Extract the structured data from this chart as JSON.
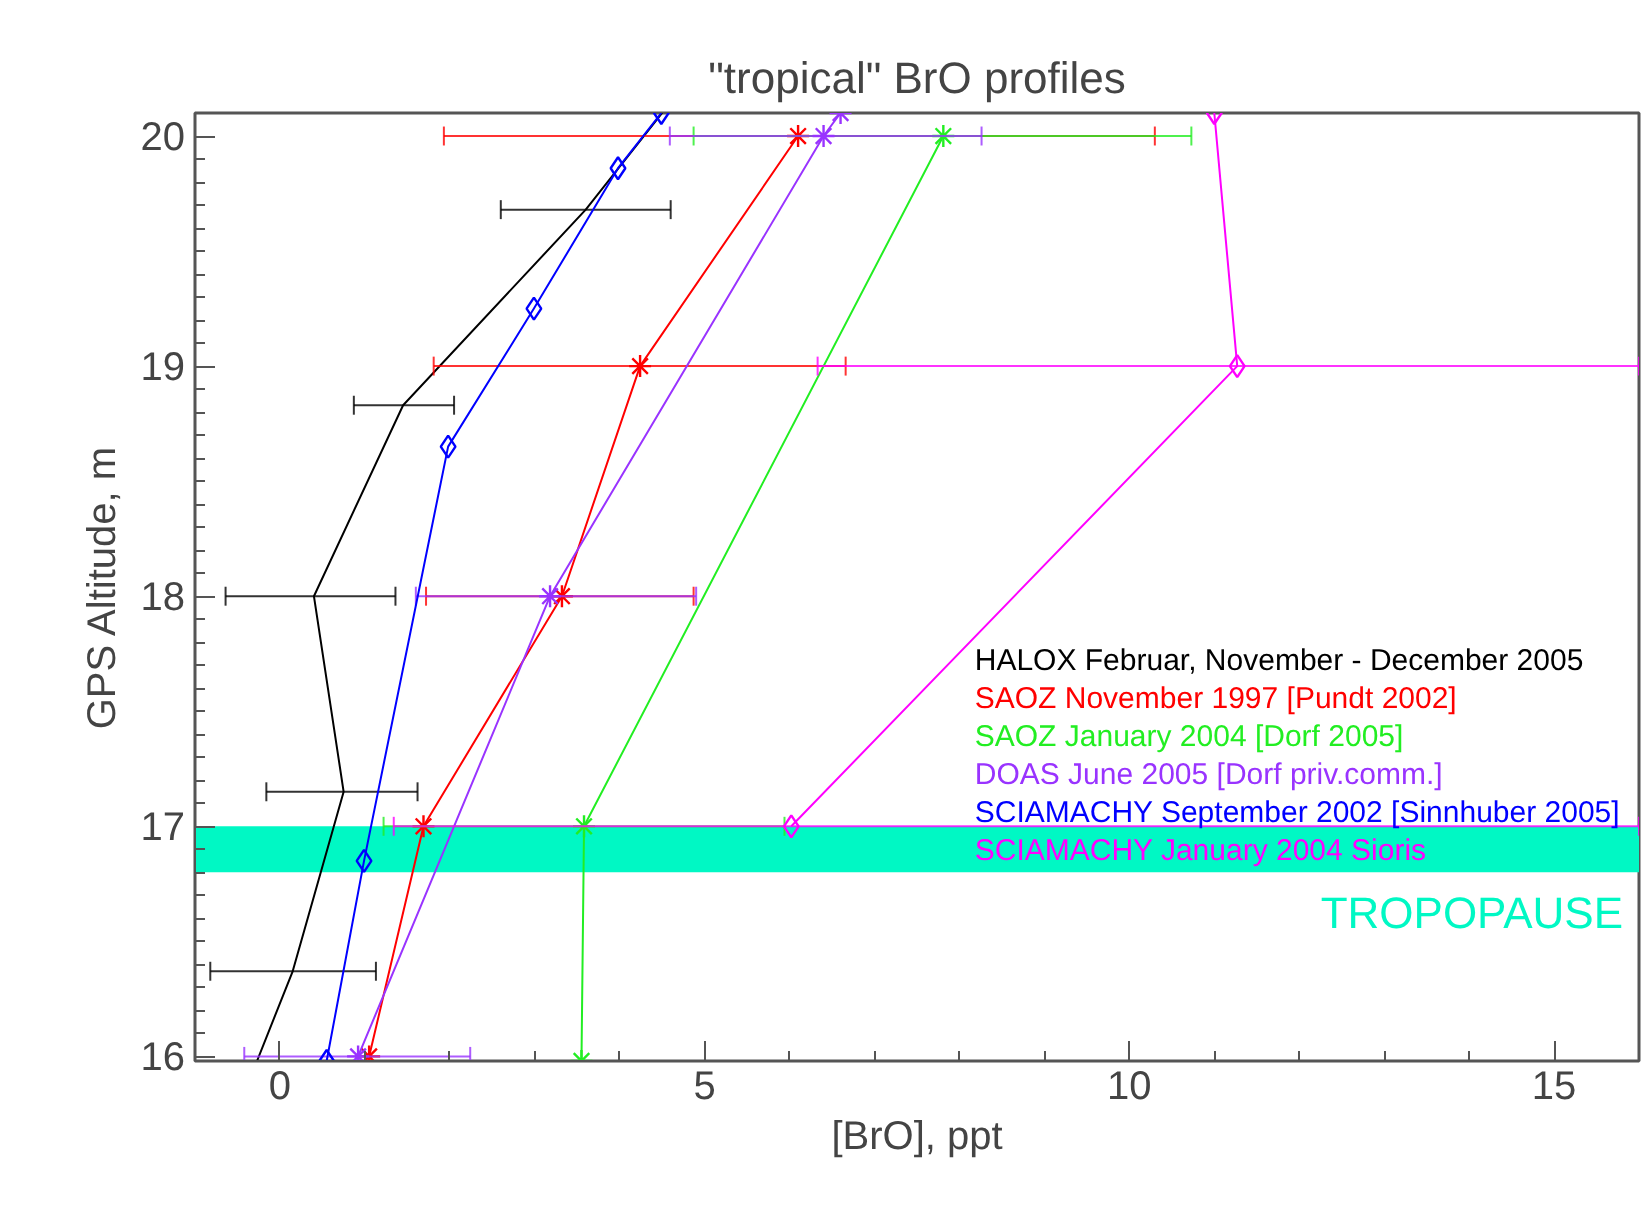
{
  "chart_data": {
    "type": "line",
    "title": "\"tropical\" BrO profiles",
    "xlabel": "[BrO], ppt",
    "ylabel": "GPS Altitude, m",
    "xlim": [
      -1,
      16
    ],
    "ylim": [
      15.98,
      20.1
    ],
    "xticks": [
      0,
      5,
      10,
      15
    ],
    "yticks": [
      16,
      17,
      18,
      19,
      20
    ],
    "grid": false,
    "legend": "right",
    "series": [
      {
        "name": "HALOX Februar, November - December 2005",
        "color": "#000000",
        "marker": "none",
        "x": [
          -0.27,
          0.15,
          0.75,
          0.4,
          1.45,
          3.6,
          4.5
        ],
        "values": [
          15.98,
          16.37,
          17.15,
          18.0,
          18.83,
          19.68,
          20.1
        ],
        "xerrors": [
          null,
          [
            -0.82,
            1.13
          ],
          [
            -0.16,
            1.62
          ],
          [
            -0.64,
            1.36
          ],
          [
            0.87,
            2.05
          ],
          [
            2.6,
            4.6
          ],
          null
        ]
      },
      {
        "name": "SAOZ November 1997 [Pundt 2002]",
        "color": "#ff0000",
        "marker": "cross",
        "x": [
          1.05,
          1.69,
          3.32,
          4.24,
          6.1
        ],
        "values": [
          16.0,
          17.0,
          18.0,
          19.0,
          20.0
        ],
        "xerrors": [
          null,
          null,
          [
            1.72,
            4.87
          ],
          [
            1.81,
            6.66
          ],
          [
            1.93,
            10.3
          ]
        ]
      },
      {
        "name": "SAOZ January 2004 [Dorf 2005]",
        "color": "#22ee22",
        "marker": "cross",
        "x": [
          3.55,
          3.58,
          7.81
        ],
        "values": [
          15.98,
          17.0,
          20.0
        ],
        "xerrors": [
          null,
          [
            1.22,
            5.94
          ],
          [
            4.87,
            10.73
          ]
        ]
      },
      {
        "name": "DOAS June 2005 [Dorf priv.comm.]",
        "color": "#9933ff",
        "marker": "cross",
        "x": [
          0.92,
          3.18,
          6.4,
          6.6
        ],
        "values": [
          16.0,
          18.0,
          20.0,
          20.1
        ],
        "xerrors": [
          [
            -0.42,
            2.24
          ],
          [
            1.6,
            4.9
          ],
          [
            4.59,
            8.26
          ],
          null
        ]
      },
      {
        "name": "SCIAMACHY September 2002 [Sinnhuber 2005]",
        "color": "#0000ff",
        "marker": "diamond",
        "x": [
          0.55,
          0.99,
          1.98,
          2.99,
          3.98,
          4.49
        ],
        "values": [
          15.98,
          16.85,
          18.65,
          19.25,
          19.86,
          20.1
        ],
        "xerrors": [
          null,
          null,
          null,
          null,
          null,
          null
        ]
      },
      {
        "name": "SCIAMACHY January 2004 Sioris",
        "color": "#ff00ff",
        "marker": "diamond",
        "x": [
          6.02,
          11.27,
          11.0
        ],
        "values": [
          17.0,
          19.0,
          20.1
        ],
        "xerrors": [
          [
            1.34,
            16
          ],
          [
            6.33,
            16
          ],
          null
        ]
      }
    ],
    "bands": [
      {
        "axis": "y",
        "from": 16.8,
        "to": 17.0,
        "label": "TROPOPAUSE",
        "color": "#00f8c4"
      }
    ]
  }
}
